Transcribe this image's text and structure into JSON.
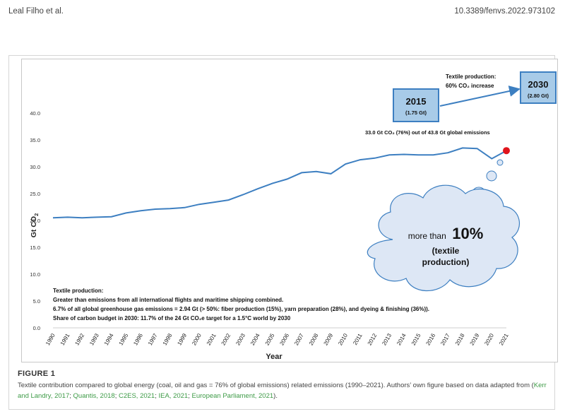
{
  "header": {
    "authors": "Leal Filho et al.",
    "doi": "10.3389/fenvs.2022.973102"
  },
  "figure": {
    "label": "FIGURE 1",
    "caption_text": "Textile contribution compared to global energy (coal, oil and gas = 76% of global emissions) related emissions (1990–2021). Authors’ own figure based on data adapted from (",
    "caption_refs": [
      "Kerr and Landry, 2017",
      "Quantis, 2018",
      "C2ES, 2021",
      "IEA, 2021",
      "European Parliament, 2021"
    ],
    "caption_end": ").",
    "colors": {
      "line": "#3d7fc1",
      "point_2021": "#e0141c",
      "callout_fill": "#a8cbe8",
      "callout_border": "#3d7fc1",
      "cloud_fill": "#dde7f5",
      "caption_ref": "#3e9b47"
    }
  },
  "chart_data": {
    "type": "line",
    "x": [
      1990,
      1991,
      1992,
      1993,
      1994,
      1995,
      1996,
      1997,
      1998,
      1999,
      2000,
      2001,
      2002,
      2003,
      2004,
      2005,
      2006,
      2007,
      2008,
      2009,
      2010,
      2011,
      2012,
      2013,
      2014,
      2015,
      2016,
      2017,
      2018,
      2019,
      2020,
      2021
    ],
    "y": [
      20.5,
      20.6,
      20.5,
      20.6,
      20.7,
      21.4,
      21.8,
      22.1,
      22.2,
      22.4,
      23.0,
      23.4,
      23.8,
      24.8,
      25.9,
      26.9,
      27.7,
      28.9,
      29.1,
      28.7,
      30.5,
      31.3,
      31.6,
      32.2,
      32.3,
      32.2,
      32.2,
      32.6,
      33.5,
      33.4,
      31.5,
      33.0
    ],
    "xlabel": "Year",
    "ylabel": "Gt CO",
    "ylabel_sub": "2",
    "ylim": [
      0,
      40
    ],
    "yticks": [
      "0.0",
      "5.0",
      "10.0",
      "15.0",
      "20.0",
      "25.0",
      "30.0",
      "35.0",
      "40.0"
    ],
    "grid": false,
    "highlight_point": {
      "x": 2021,
      "y": 33.0
    },
    "annotations": {
      "emissions_note": "33.0 Gt CO₂ (76%) out of 43.8 Gt global emissions",
      "textile_increase_line1": "Textile production:",
      "textile_increase_line2": "60% CO₂ increase",
      "box_2015_year": "2015",
      "box_2015_value": "(1.75 Gt)",
      "box_2030_year": "2030",
      "box_2030_value": "(2.80 Gt)",
      "cloud_pre": "more than",
      "cloud_big": "10%",
      "cloud_line2": "(textile",
      "cloud_line3": "production)",
      "textile_lines": [
        "Textile production:",
        "Greater than emissions from all international flights and maritime shipping combined.",
        "6.7% of all global greenhouse gas emissions = 2.94 Gt (> 50%: fiber production (15%), yarn preparation (28%), and dyeing & finishing (36%)).",
        "Share of carbon budget in 2030: 11.7% of the 24 Gt CO₂e target for a 1.5°C world by 2030"
      ]
    }
  }
}
